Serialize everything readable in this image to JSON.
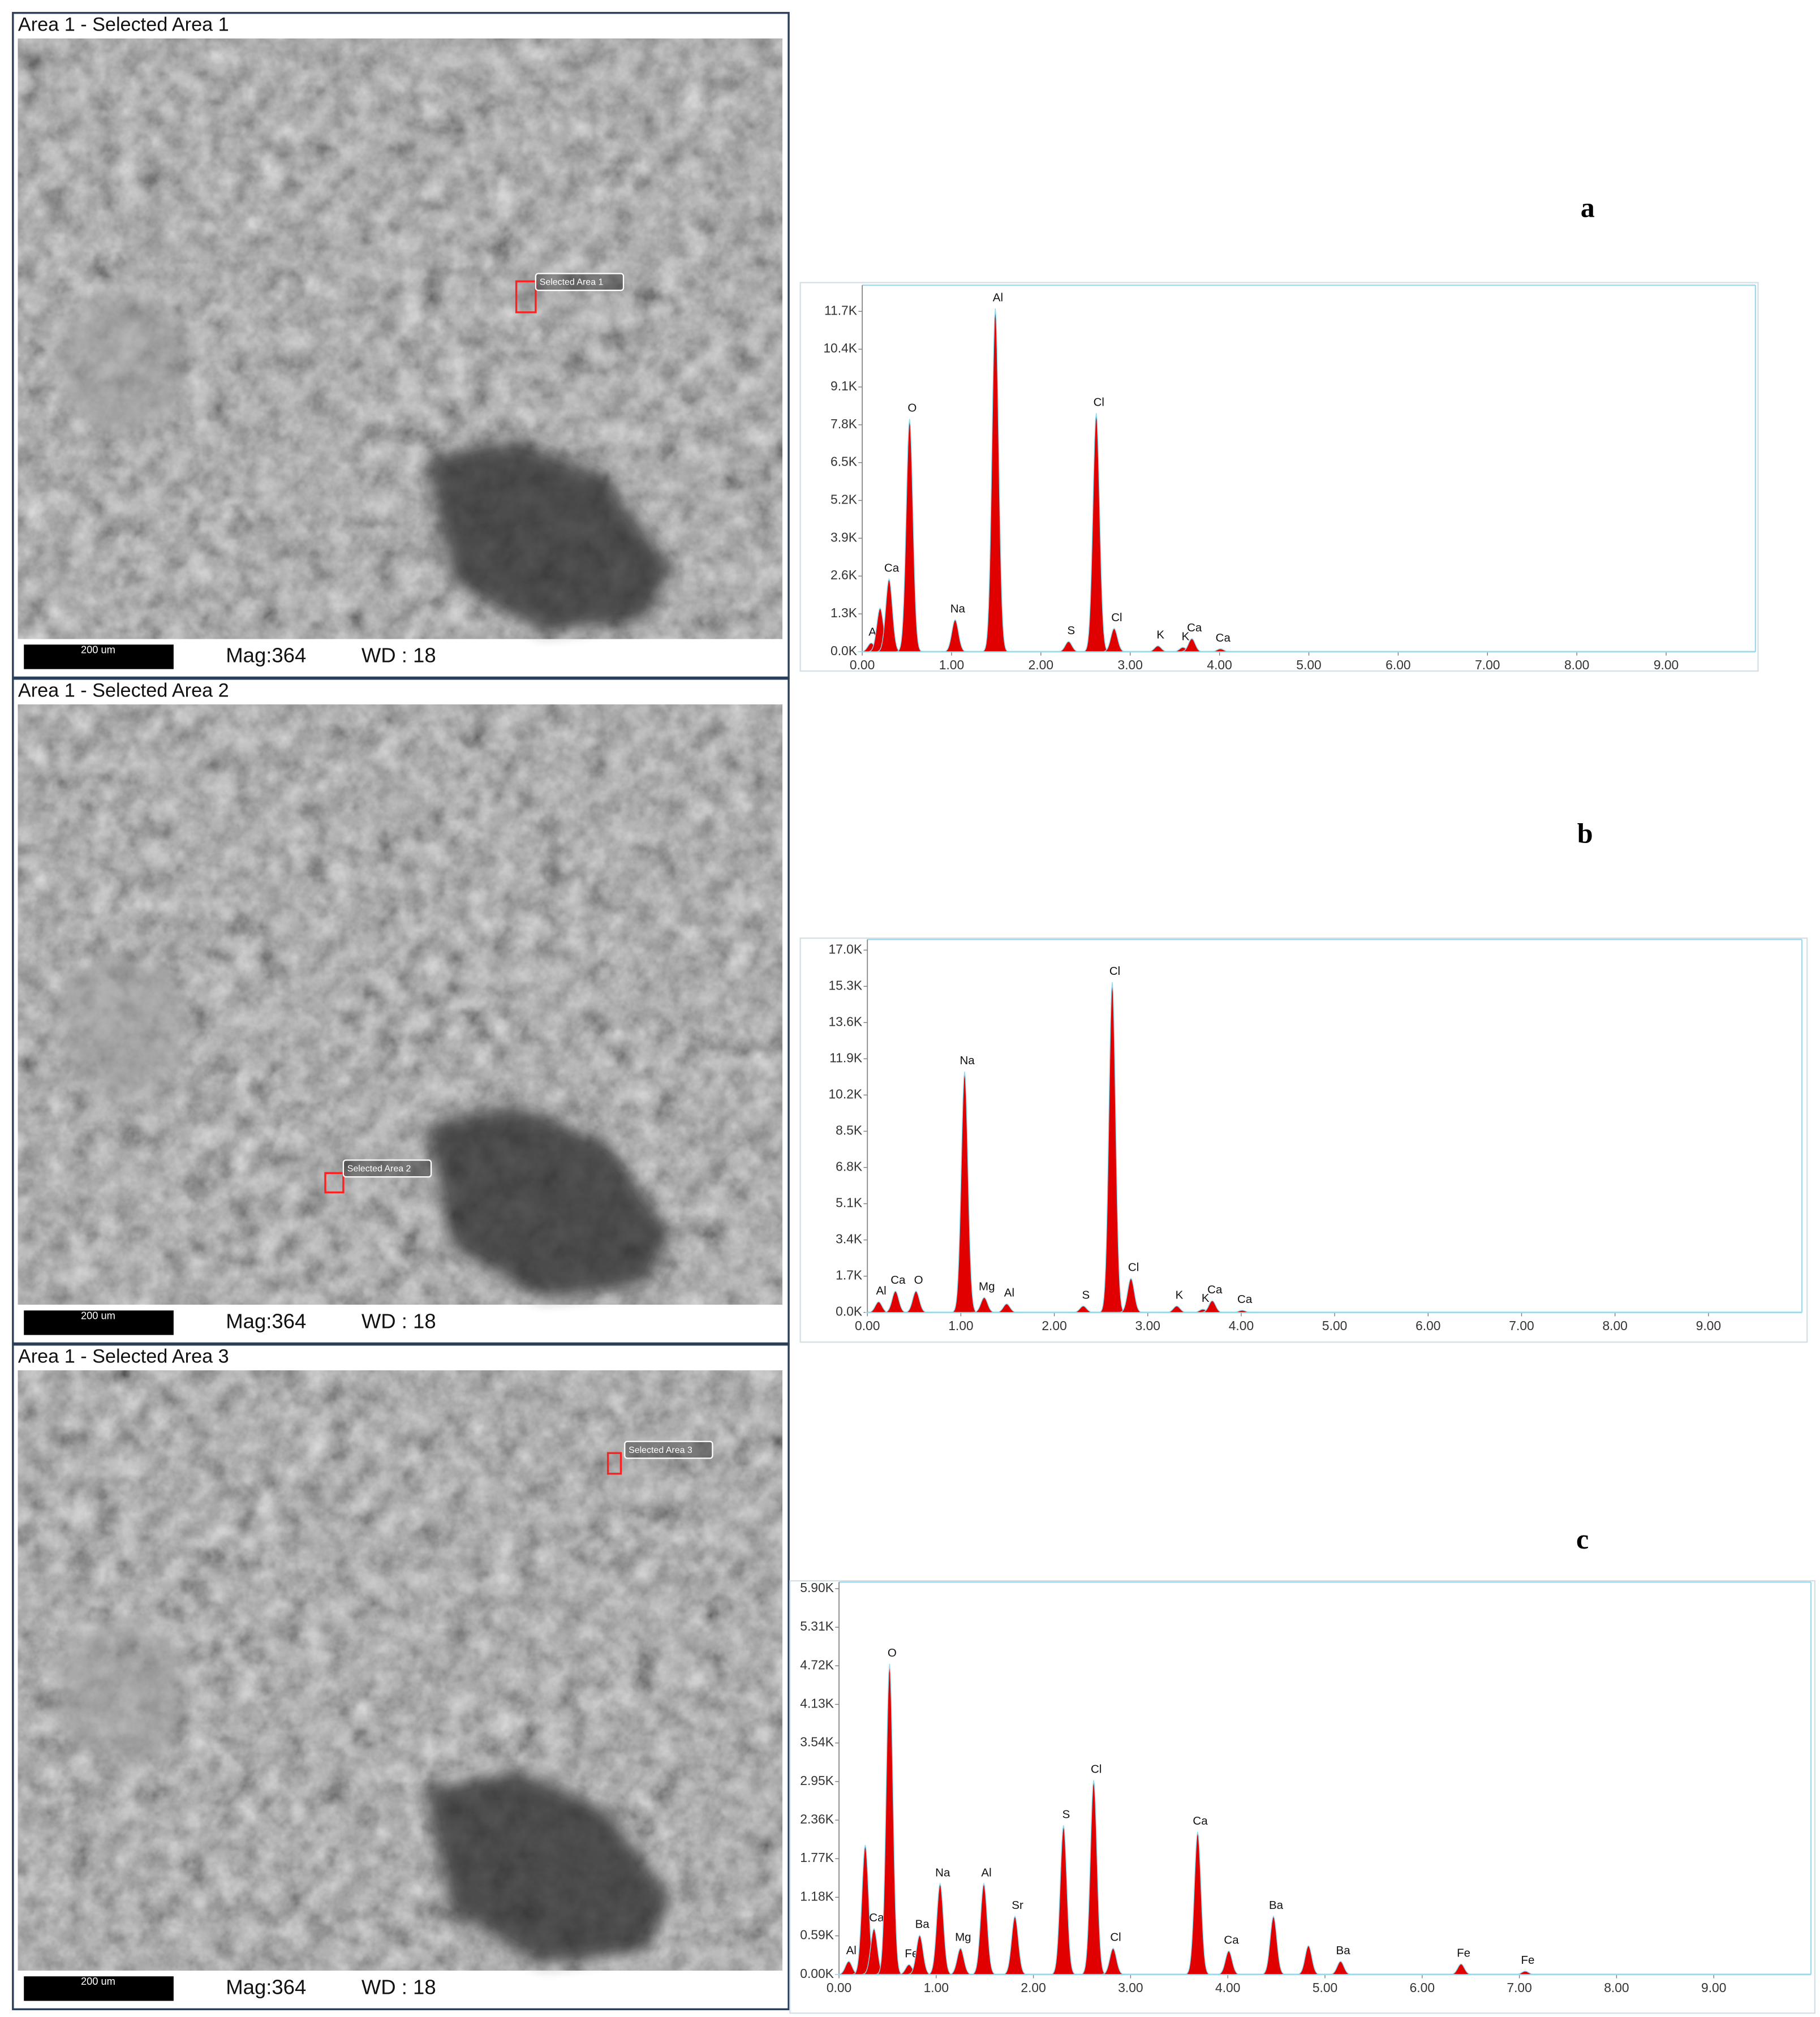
{
  "sem_panels": [
    {
      "title": "Area 1 - Selected Area 1",
      "scale_bar": "200 um",
      "magnification": "Mag:364",
      "working_distance": "WD : 18",
      "selection_label": "Selected Area 1"
    },
    {
      "title": "Area 1 - Selected Area 2",
      "scale_bar": "200 um",
      "magnification": "Mag:364",
      "working_distance": "WD : 18",
      "selection_label": "Selected Area 2"
    },
    {
      "title": "Area 1 - Selected Area 3",
      "scale_bar": "200 um",
      "magnification": "Mag:364",
      "working_distance": "WD : 18",
      "selection_label": "Selected Area 3"
    }
  ],
  "chart_data": [
    {
      "type": "spectrum",
      "panel_label": "a",
      "color": "#e00000",
      "xlim": [
        0,
        10
      ],
      "ylim": [
        0,
        12600
      ],
      "xticks": [
        {
          "value": 0,
          "label": "0.00"
        },
        {
          "value": 1,
          "label": "1.00"
        },
        {
          "value": 2,
          "label": "2.00"
        },
        {
          "value": 3,
          "label": "3.00"
        },
        {
          "value": 4,
          "label": "4.00"
        },
        {
          "value": 5,
          "label": "5.00"
        },
        {
          "value": 6,
          "label": "6.00"
        },
        {
          "value": 7,
          "label": "7.00"
        },
        {
          "value": 8,
          "label": "8.00"
        },
        {
          "value": 9,
          "label": "9.00"
        }
      ],
      "yticks": [
        {
          "value": 0,
          "label": "0.0K"
        },
        {
          "value": 1300,
          "label": "1.3K"
        },
        {
          "value": 2600,
          "label": "2.6K"
        },
        {
          "value": 3900,
          "label": "3.9K"
        },
        {
          "value": 5200,
          "label": "5.2K"
        },
        {
          "value": 6500,
          "label": "6.5K"
        },
        {
          "value": 7800,
          "label": "7.8K"
        },
        {
          "value": 9100,
          "label": "9.1K"
        },
        {
          "value": 10400,
          "label": "10.4K"
        },
        {
          "value": 11700,
          "label": "11.7K"
        }
      ],
      "peaks": [
        {
          "label": "Al",
          "x": 0.1,
          "y": 300
        },
        {
          "label": null,
          "x": 0.2,
          "y": 1500
        },
        {
          "label": "Ca",
          "x": 0.3,
          "y": 2500
        },
        {
          "label": "O",
          "x": 0.53,
          "y": 8000
        },
        {
          "label": "Na",
          "x": 1.04,
          "y": 1100
        },
        {
          "label": "Al",
          "x": 1.49,
          "y": 11800
        },
        {
          "label": "S",
          "x": 2.31,
          "y": 350
        },
        {
          "label": "Cl",
          "x": 2.62,
          "y": 8200
        },
        {
          "label": "Cl",
          "x": 2.82,
          "y": 800
        },
        {
          "label": "K",
          "x": 3.31,
          "y": 200
        },
        {
          "label": "K",
          "x": 3.59,
          "y": 150
        },
        {
          "label": "Ca",
          "x": 3.69,
          "y": 450
        },
        {
          "label": "Ca",
          "x": 4.01,
          "y": 100
        }
      ]
    },
    {
      "type": "spectrum",
      "panel_label": "b",
      "color": "#e00000",
      "xlim": [
        0,
        10
      ],
      "ylim": [
        0,
        17500
      ],
      "xticks": [
        {
          "value": 0,
          "label": "0.00"
        },
        {
          "value": 1,
          "label": "1.00"
        },
        {
          "value": 2,
          "label": "2.00"
        },
        {
          "value": 3,
          "label": "3.00"
        },
        {
          "value": 4,
          "label": "4.00"
        },
        {
          "value": 5,
          "label": "5.00"
        },
        {
          "value": 6,
          "label": "6.00"
        },
        {
          "value": 7,
          "label": "7.00"
        },
        {
          "value": 8,
          "label": "8.00"
        },
        {
          "value": 9,
          "label": "9.00"
        }
      ],
      "yticks": [
        {
          "value": 0,
          "label": "0.0K"
        },
        {
          "value": 1700,
          "label": "1.7K"
        },
        {
          "value": 3400,
          "label": "3.4K"
        },
        {
          "value": 5100,
          "label": "5.1K"
        },
        {
          "value": 6800,
          "label": "6.8K"
        },
        {
          "value": 8500,
          "label": "8.5K"
        },
        {
          "value": 10200,
          "label": "10.2K"
        },
        {
          "value": 11900,
          "label": "11.9K"
        },
        {
          "value": 13600,
          "label": "13.6K"
        },
        {
          "value": 15300,
          "label": "15.3K"
        },
        {
          "value": 17000,
          "label": "17.0K"
        }
      ],
      "peaks": [
        {
          "label": "Al",
          "x": 0.12,
          "y": 500
        },
        {
          "label": "Ca",
          "x": 0.3,
          "y": 1000
        },
        {
          "label": "O",
          "x": 0.52,
          "y": 1000
        },
        {
          "label": "Na",
          "x": 1.04,
          "y": 11300
        },
        {
          "label": "Mg",
          "x": 1.25,
          "y": 700
        },
        {
          "label": "Al",
          "x": 1.49,
          "y": 400
        },
        {
          "label": "S",
          "x": 2.31,
          "y": 300
        },
        {
          "label": "Cl",
          "x": 2.62,
          "y": 15500
        },
        {
          "label": "Cl",
          "x": 2.82,
          "y": 1600
        },
        {
          "label": "K",
          "x": 3.31,
          "y": 300
        },
        {
          "label": "K",
          "x": 3.59,
          "y": 150
        },
        {
          "label": "Ca",
          "x": 3.69,
          "y": 550
        },
        {
          "label": "Ca",
          "x": 4.01,
          "y": 100
        }
      ]
    },
    {
      "type": "spectrum",
      "panel_label": "c",
      "color": "#e00000",
      "xlim": [
        0,
        10
      ],
      "ylim": [
        0,
        6000
      ],
      "xticks": [
        {
          "value": 0,
          "label": "0.00"
        },
        {
          "value": 1,
          "label": "1.00"
        },
        {
          "value": 2,
          "label": "2.00"
        },
        {
          "value": 3,
          "label": "3.00"
        },
        {
          "value": 4,
          "label": "4.00"
        },
        {
          "value": 5,
          "label": "5.00"
        },
        {
          "value": 6,
          "label": "6.00"
        },
        {
          "value": 7,
          "label": "7.00"
        },
        {
          "value": 8,
          "label": "8.00"
        },
        {
          "value": 9,
          "label": "9.00"
        }
      ],
      "yticks": [
        {
          "value": 0,
          "label": "0.00K"
        },
        {
          "value": 590,
          "label": "0.59K"
        },
        {
          "value": 1180,
          "label": "1.18K"
        },
        {
          "value": 1770,
          "label": "1.77K"
        },
        {
          "value": 2360,
          "label": "2.36K"
        },
        {
          "value": 2950,
          "label": "2.95K"
        },
        {
          "value": 3540,
          "label": "3.54K"
        },
        {
          "value": 4130,
          "label": "4.13K"
        },
        {
          "value": 4720,
          "label": "4.72K"
        },
        {
          "value": 5310,
          "label": "5.31K"
        },
        {
          "value": 5900,
          "label": "5.90K"
        }
      ],
      "peaks": [
        {
          "label": "Al",
          "x": 0.1,
          "y": 200
        },
        {
          "label": null,
          "x": 0.27,
          "y": 1980
        },
        {
          "label": "Ca",
          "x": 0.36,
          "y": 700
        },
        {
          "label": "O",
          "x": 0.52,
          "y": 4750
        },
        {
          "label": "Fe",
          "x": 0.72,
          "y": 150
        },
        {
          "label": "Ba",
          "x": 0.83,
          "y": 600
        },
        {
          "label": "Na",
          "x": 1.04,
          "y": 1390
        },
        {
          "label": "Mg",
          "x": 1.25,
          "y": 400
        },
        {
          "label": "Al",
          "x": 1.49,
          "y": 1390
        },
        {
          "label": "Sr",
          "x": 1.81,
          "y": 890
        },
        {
          "label": "S",
          "x": 2.31,
          "y": 2280
        },
        {
          "label": "Cl",
          "x": 2.62,
          "y": 2970
        },
        {
          "label": "Cl",
          "x": 2.82,
          "y": 400
        },
        {
          "label": "Ca",
          "x": 3.69,
          "y": 2180
        },
        {
          "label": "Ca",
          "x": 4.01,
          "y": 360
        },
        {
          "label": "Ba",
          "x": 4.47,
          "y": 890
        },
        {
          "label": null,
          "x": 4.83,
          "y": 440
        },
        {
          "label": "Ba",
          "x": 5.16,
          "y": 200
        },
        {
          "label": "Fe",
          "x": 6.4,
          "y": 160
        },
        {
          "label": "Fe",
          "x": 7.06,
          "y": 50
        }
      ]
    }
  ]
}
